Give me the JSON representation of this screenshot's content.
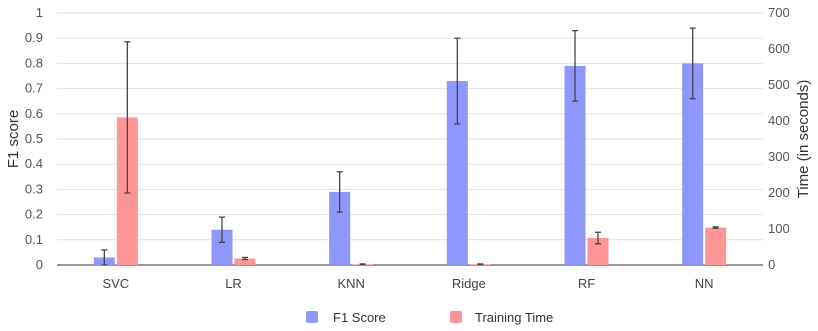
{
  "chart_data": {
    "type": "bar",
    "categories": [
      "SVC",
      "LR",
      "KNN",
      "Ridge",
      "RF",
      "NN"
    ],
    "series": [
      {
        "name": "F1 Score",
        "axis": "left",
        "color": "#8f96fc",
        "values": [
          0.03,
          0.14,
          0.29,
          0.73,
          0.79,
          0.8
        ],
        "error": [
          0.03,
          0.05,
          0.08,
          0.17,
          0.14,
          0.14
        ]
      },
      {
        "name": "Training Time",
        "axis": "right",
        "color": "#ff9596",
        "values": [
          410,
          18,
          2,
          2,
          75,
          104
        ],
        "error": [
          210,
          3,
          1,
          1,
          16,
          2
        ]
      }
    ],
    "ylabel": "F1 score",
    "y2label": "Time (in seconds)",
    "ylim": [
      0,
      1
    ],
    "y2lim": [
      0,
      700
    ],
    "yticks": [
      "0",
      "0.1",
      "0.2",
      "0.3",
      "0.4",
      "0.5",
      "0.6",
      "0.7",
      "0.8",
      "0.9",
      "1"
    ],
    "y2ticks": [
      "0",
      "100",
      "200",
      "300",
      "400",
      "500",
      "600",
      "700"
    ],
    "grid": true,
    "legend_position": "bottom"
  }
}
